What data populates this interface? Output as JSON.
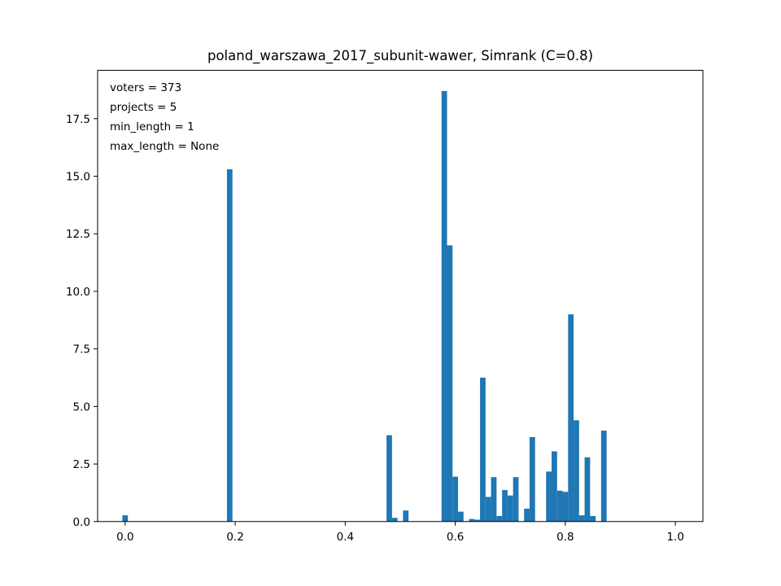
{
  "chart_data": {
    "type": "bar",
    "title": "poland_warszawa_2017_subunit-wawer, Simrank (C=0.8)",
    "xlabel": "",
    "ylabel": "",
    "xlim": [
      -0.05,
      1.05
    ],
    "ylim": [
      0,
      19.6
    ],
    "bin_width": 0.01,
    "series_color": "#1f77b4",
    "grid": false,
    "x_ticks": [
      0.0,
      0.2,
      0.4,
      0.6,
      0.8,
      1.0
    ],
    "x_tick_labels": [
      "0.0",
      "0.2",
      "0.4",
      "0.6",
      "0.8",
      "1.0"
    ],
    "y_ticks": [
      0.0,
      2.5,
      5.0,
      7.5,
      10.0,
      12.5,
      15.0,
      17.5
    ],
    "y_tick_labels": [
      "0.0",
      "2.5",
      "5.0",
      "7.5",
      "10.0",
      "12.5",
      "15.0",
      "17.5"
    ],
    "annotations": [
      "voters = 373",
      "projects = 5",
      "min_length = 1",
      "max_length = None"
    ],
    "bins": [
      {
        "x": 0.0,
        "value": 0.27
      },
      {
        "x": 0.19,
        "value": 15.3
      },
      {
        "x": 0.48,
        "value": 3.75
      },
      {
        "x": 0.49,
        "value": 0.16
      },
      {
        "x": 0.51,
        "value": 0.48
      },
      {
        "x": 0.58,
        "value": 18.7
      },
      {
        "x": 0.59,
        "value": 12.0
      },
      {
        "x": 0.6,
        "value": 1.95
      },
      {
        "x": 0.61,
        "value": 0.43
      },
      {
        "x": 0.63,
        "value": 0.11
      },
      {
        "x": 0.64,
        "value": 0.08
      },
      {
        "x": 0.65,
        "value": 6.25
      },
      {
        "x": 0.66,
        "value": 1.07
      },
      {
        "x": 0.67,
        "value": 1.93
      },
      {
        "x": 0.68,
        "value": 0.24
      },
      {
        "x": 0.69,
        "value": 1.37
      },
      {
        "x": 0.7,
        "value": 1.13
      },
      {
        "x": 0.71,
        "value": 1.93
      },
      {
        "x": 0.73,
        "value": 0.56
      },
      {
        "x": 0.74,
        "value": 3.67
      },
      {
        "x": 0.77,
        "value": 2.17
      },
      {
        "x": 0.78,
        "value": 3.05
      },
      {
        "x": 0.79,
        "value": 1.34
      },
      {
        "x": 0.8,
        "value": 1.29
      },
      {
        "x": 0.81,
        "value": 9.0
      },
      {
        "x": 0.82,
        "value": 4.4
      },
      {
        "x": 0.83,
        "value": 0.27
      },
      {
        "x": 0.84,
        "value": 2.79
      },
      {
        "x": 0.85,
        "value": 0.24
      },
      {
        "x": 0.87,
        "value": 3.95
      }
    ]
  }
}
